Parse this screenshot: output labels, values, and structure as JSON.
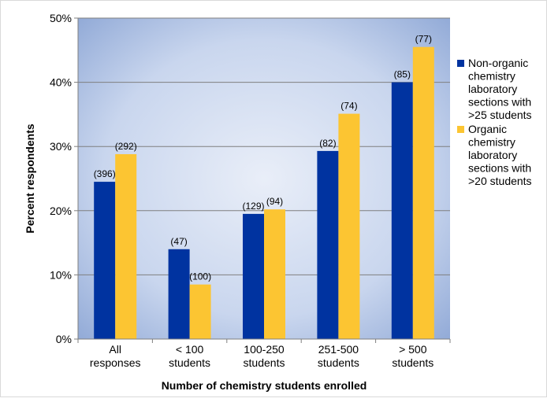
{
  "chart_data": {
    "type": "bar",
    "title": "",
    "xlabel": "Number of chemistry students enrolled",
    "ylabel": "Percent respondents",
    "ylim": [
      0,
      50
    ],
    "yticks": [
      "0%",
      "10%",
      "20%",
      "30%",
      "40%",
      "50%"
    ],
    "categories": [
      [
        "All",
        "responses"
      ],
      [
        "< 100",
        "students"
      ],
      [
        "100-250",
        "students"
      ],
      [
        "251-500",
        "students"
      ],
      [
        "> 500",
        "students"
      ]
    ],
    "series": [
      {
        "name": "Non-organic chemistry laboratory sections with >25 students",
        "name_lines": [
          "Non-organic",
          "chemistry",
          "laboratory",
          "sections with",
          ">25 students"
        ],
        "color": "#0033a0",
        "values": [
          24.5,
          14.0,
          19.5,
          29.3,
          40.0
        ],
        "labels": [
          "(396)",
          "(47)",
          "(129)",
          "(82)",
          "(85)"
        ]
      },
      {
        "name": "Organic chemistry laboratory sections with >20 students",
        "name_lines": [
          "Organic",
          "chemistry",
          "laboratory",
          "sections with",
          ">20 students"
        ],
        "color": "#fcc532",
        "values": [
          28.8,
          8.5,
          20.2,
          35.1,
          45.5
        ],
        "labels": [
          "(292)",
          "(100)",
          "(94)",
          "(74)",
          "(77)"
        ]
      }
    ],
    "grid": true,
    "legend_position": "right"
  }
}
